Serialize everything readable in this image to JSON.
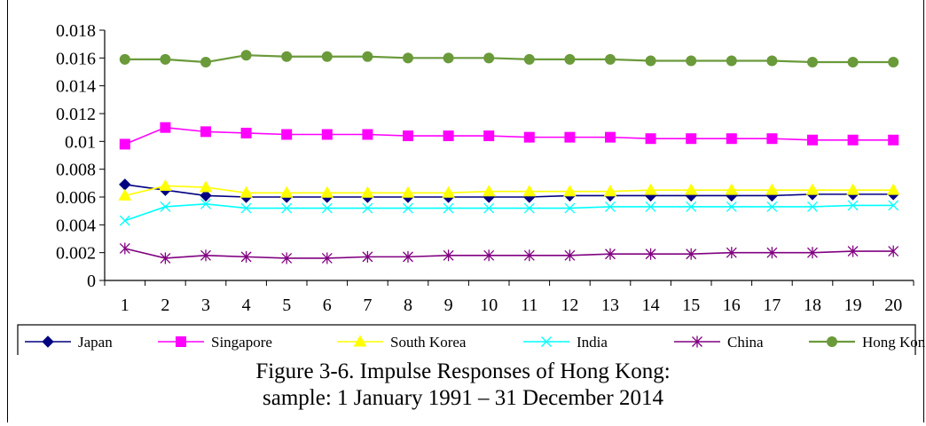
{
  "chart_data": {
    "type": "line",
    "categories": [
      "1",
      "2",
      "3",
      "4",
      "5",
      "6",
      "7",
      "8",
      "9",
      "10",
      "11",
      "12",
      "13",
      "14",
      "15",
      "16",
      "17",
      "18",
      "19",
      "20"
    ],
    "ylim": [
      0,
      0.018
    ],
    "yticks": [
      "0",
      "0.002",
      "0.004",
      "0.006",
      "0.008",
      "0.01",
      "0.012",
      "0.014",
      "0.016",
      "0.018"
    ],
    "series": [
      {
        "name": "Japan",
        "color": "#000080",
        "marker": "diamond",
        "values": [
          0.0069,
          0.0065,
          0.0061,
          0.006,
          0.006,
          0.006,
          0.006,
          0.006,
          0.006,
          0.006,
          0.006,
          0.0061,
          0.0061,
          0.0061,
          0.0061,
          0.0061,
          0.0061,
          0.0062,
          0.0062,
          0.0062
        ]
      },
      {
        "name": "Singapore",
        "color": "#ff00ff",
        "marker": "square",
        "values": [
          0.0098,
          0.011,
          0.0107,
          0.0106,
          0.0105,
          0.0105,
          0.0105,
          0.0104,
          0.0104,
          0.0104,
          0.0103,
          0.0103,
          0.0103,
          0.0102,
          0.0102,
          0.0102,
          0.0102,
          0.0101,
          0.0101,
          0.0101
        ]
      },
      {
        "name": "South Korea",
        "color": "#ffff00",
        "marker": "triangle",
        "values": [
          0.0061,
          0.0068,
          0.0067,
          0.0063,
          0.0063,
          0.0063,
          0.0063,
          0.0063,
          0.0063,
          0.0064,
          0.0064,
          0.0064,
          0.0064,
          0.0065,
          0.0065,
          0.0065,
          0.0065,
          0.0065,
          0.0065,
          0.0065
        ]
      },
      {
        "name": "India",
        "color": "#00ffff",
        "marker": "x",
        "values": [
          0.0043,
          0.0053,
          0.0055,
          0.0052,
          0.0052,
          0.0052,
          0.0052,
          0.0052,
          0.0052,
          0.0052,
          0.0052,
          0.0052,
          0.0053,
          0.0053,
          0.0053,
          0.0053,
          0.0053,
          0.0053,
          0.0054,
          0.0054
        ]
      },
      {
        "name": "China",
        "color": "#800080",
        "marker": "star",
        "values": [
          0.0023,
          0.0016,
          0.0018,
          0.0017,
          0.0016,
          0.0016,
          0.0017,
          0.0017,
          0.0018,
          0.0018,
          0.0018,
          0.0018,
          0.0019,
          0.0019,
          0.0019,
          0.002,
          0.002,
          0.002,
          0.0021,
          0.0021
        ]
      },
      {
        "name": "Hong Kong",
        "color": "#6a9a3a",
        "marker": "circle",
        "values": [
          0.0159,
          0.0159,
          0.0157,
          0.0162,
          0.0161,
          0.0161,
          0.0161,
          0.016,
          0.016,
          0.016,
          0.0159,
          0.0159,
          0.0159,
          0.0158,
          0.0158,
          0.0158,
          0.0158,
          0.0157,
          0.0157,
          0.0157
        ]
      }
    ],
    "legend_position": "bottom",
    "grid": false
  },
  "caption": {
    "line1": "Figure 3-6. Impulse Responses of Hong Kong:",
    "line2": "sample: 1 January 1991 – 31 December 2014"
  }
}
